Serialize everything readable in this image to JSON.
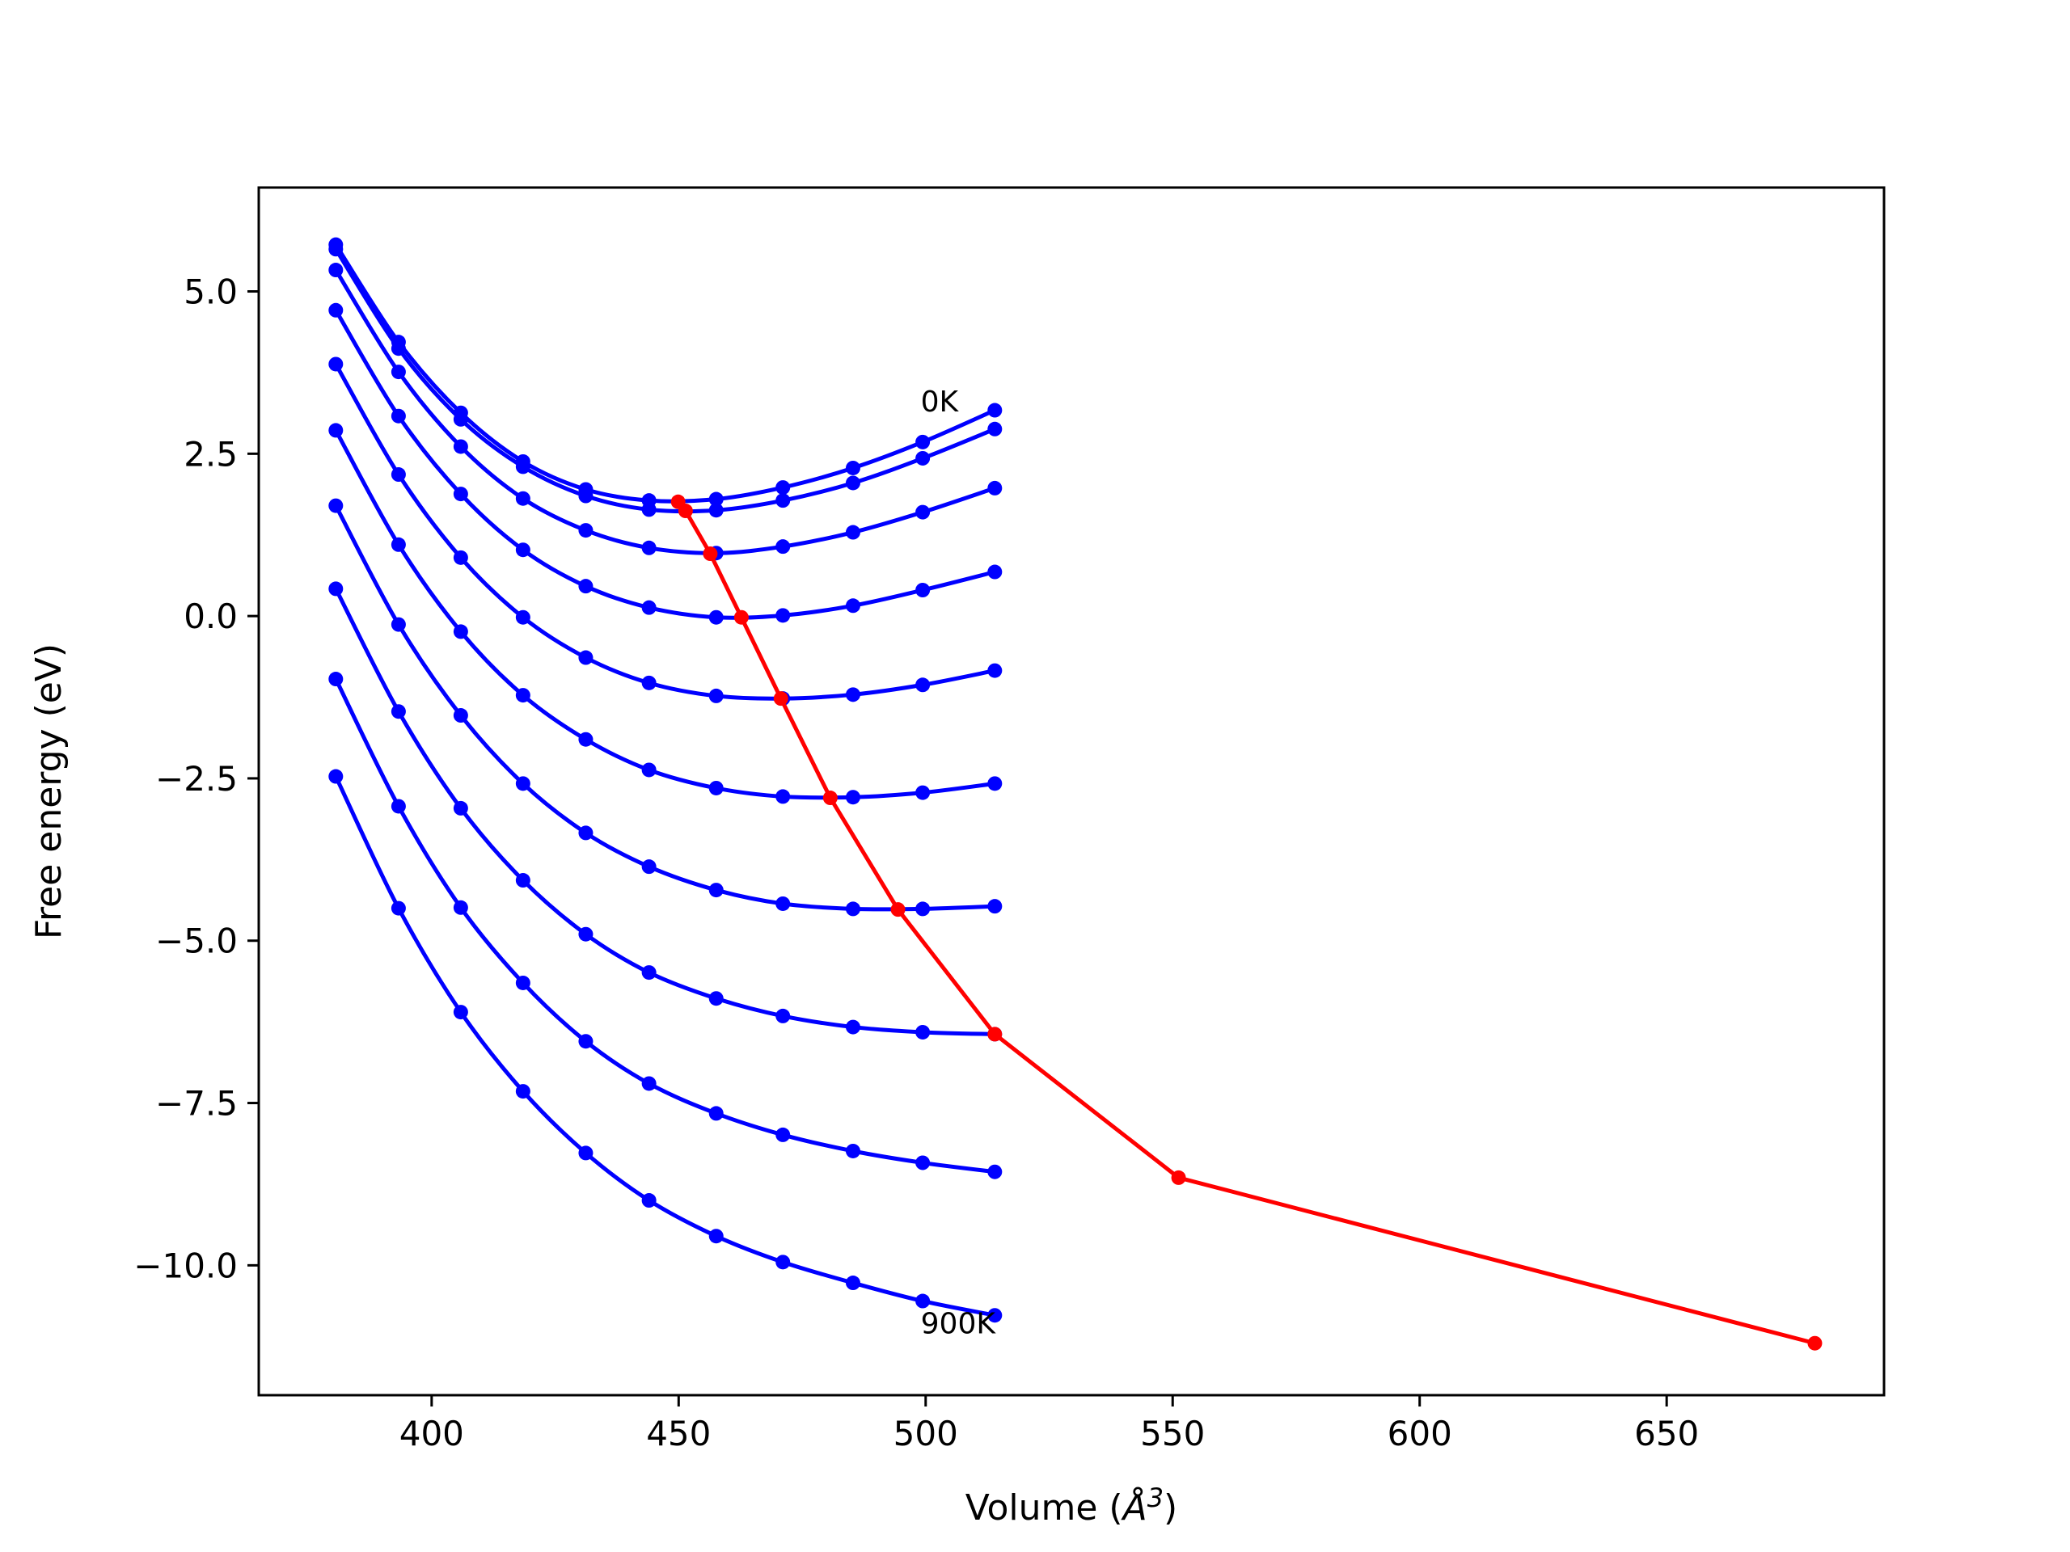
{
  "chart_data": {
    "type": "line",
    "title": "",
    "xlabel": "Volume ($\\AA^3$)",
    "xlabel_parts": {
      "main": "Volume (",
      "symbol": "Å",
      "sup": "3",
      "close": ")"
    },
    "ylabel": "Free energy (eV)",
    "xlim": [
      365,
      694
    ],
    "ylim": [
      -12.0,
      6.6
    ],
    "xticks": [
      400,
      450,
      500,
      550,
      600,
      650
    ],
    "xtick_labels": [
      "400",
      "450",
      "500",
      "550",
      "600",
      "650"
    ],
    "yticks": [
      5.0,
      2.5,
      0.0,
      -2.5,
      -5.0,
      -7.5,
      -10.0
    ],
    "ytick_labels": [
      "5.0",
      "2.5",
      "0.0",
      "−2.5",
      "−5.0",
      "−7.5",
      "−10.0"
    ],
    "grid": false,
    "legend": "none",
    "colors": {
      "curves": "#0000ff",
      "minima": "#ff0000"
    },
    "annotations": [
      {
        "text": "0K",
        "x": 499,
        "y": 3.3
      },
      {
        "text": "900K",
        "x": 499,
        "y": -10.9
      }
    ],
    "x": [
      380.6,
      393.3,
      405.9,
      418.5,
      431.2,
      444.0,
      457.6,
      471.1,
      485.3,
      499.4,
      514.0
    ],
    "series": [
      {
        "values": [
          5.72,
          4.22,
          3.13,
          2.38,
          1.95,
          1.78,
          1.8,
          1.98,
          2.28,
          2.68,
          3.17
        ]
      },
      {
        "values": [
          5.65,
          4.12,
          3.03,
          2.3,
          1.85,
          1.64,
          1.63,
          1.78,
          2.05,
          2.43,
          2.88
        ]
      },
      {
        "values": [
          5.33,
          3.76,
          2.61,
          1.81,
          1.32,
          1.05,
          0.97,
          1.07,
          1.29,
          1.6,
          1.97
        ]
      },
      {
        "values": [
          4.71,
          3.08,
          1.88,
          1.02,
          0.46,
          0.13,
          -0.02,
          0.01,
          0.16,
          0.4,
          0.68
        ]
      },
      {
        "values": [
          3.88,
          2.18,
          0.9,
          -0.02,
          -0.64,
          -1.03,
          -1.23,
          -1.27,
          -1.21,
          -1.06,
          -0.84
        ]
      },
      {
        "values": [
          2.86,
          1.1,
          -0.24,
          -1.22,
          -1.9,
          -2.37,
          -2.65,
          -2.78,
          -2.79,
          -2.72,
          -2.58
        ]
      },
      {
        "values": [
          1.7,
          -0.13,
          -1.53,
          -2.58,
          -3.34,
          -3.86,
          -4.22,
          -4.43,
          -4.51,
          -4.51,
          -4.47
        ]
      },
      {
        "values": [
          0.42,
          -1.47,
          -2.96,
          -4.07,
          -4.9,
          -5.49,
          -5.89,
          -6.16,
          -6.33,
          -6.41,
          -6.44
        ]
      },
      {
        "values": [
          -0.97,
          -2.93,
          -4.49,
          -5.65,
          -6.55,
          -7.2,
          -7.66,
          -7.99,
          -8.24,
          -8.42,
          -8.56
        ]
      },
      {
        "values": [
          -2.47,
          -4.5,
          -6.1,
          -7.32,
          -8.27,
          -9.0,
          -9.55,
          -9.95,
          -10.27,
          -10.55,
          -10.77
        ]
      }
    ],
    "minima_line": {
      "x": [
        449.9,
        451.4,
        456.4,
        462.7,
        470.7,
        480.7,
        494.4,
        514.0,
        551.2,
        680.0
      ],
      "y": [
        1.76,
        1.62,
        0.96,
        -0.02,
        -1.27,
        -2.8,
        -4.52,
        -6.44,
        -8.65,
        -11.2
      ]
    }
  }
}
